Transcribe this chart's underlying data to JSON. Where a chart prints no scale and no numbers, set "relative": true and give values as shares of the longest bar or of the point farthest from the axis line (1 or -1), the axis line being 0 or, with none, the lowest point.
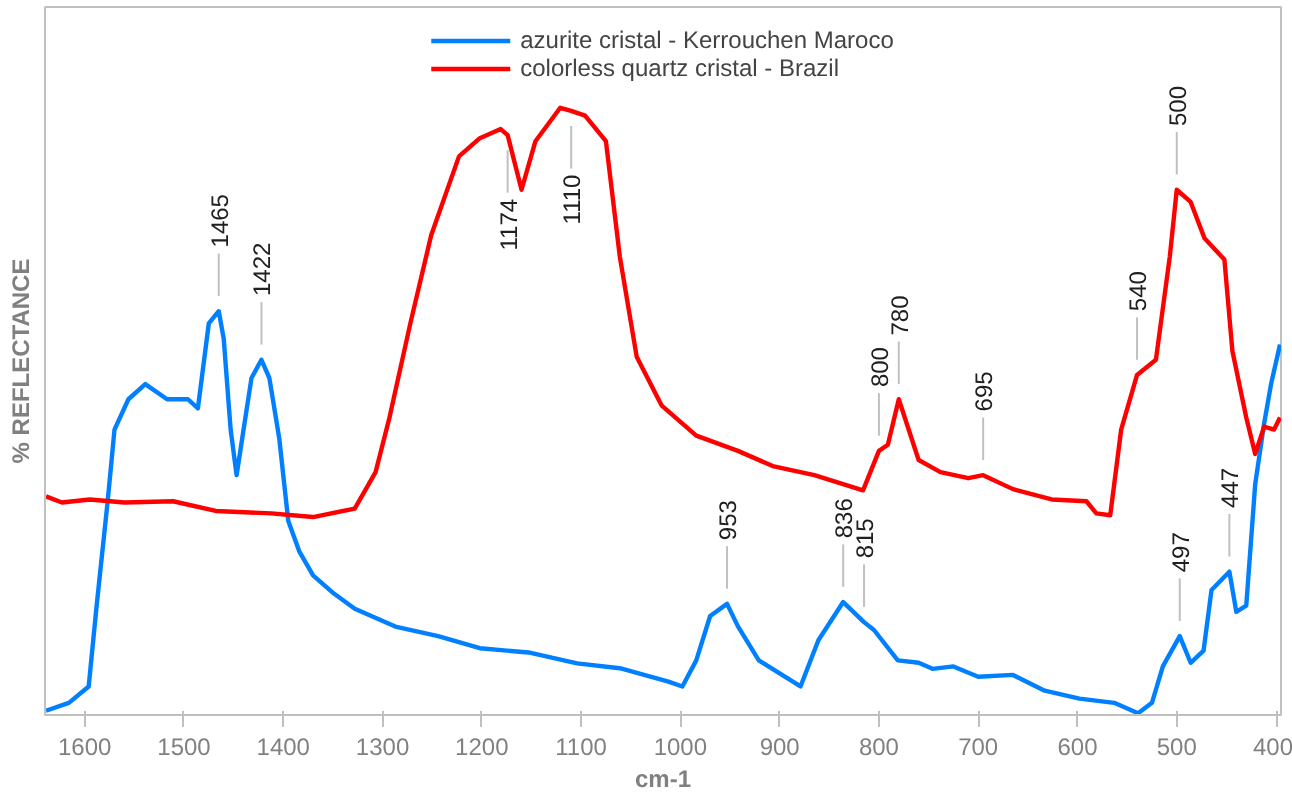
{
  "chart_data": {
    "type": "line",
    "xlabel": "cm-1",
    "ylabel": "% REFLECTANCE",
    "relative": true,
    "legend": "top",
    "grid": false,
    "xlim": [
      1640,
      395
    ],
    "xticks": [
      1600,
      1500,
      1400,
      1300,
      1200,
      1100,
      1000,
      900,
      800,
      700,
      600,
      500,
      400
    ],
    "series": [
      {
        "name": "azurite cristal - Kerrouchen Maroco",
        "color": "#0080ff",
        "x": [
          1639,
          1616,
          1596,
          1588,
          1577,
          1570,
          1556,
          1539,
          1517,
          1496,
          1486,
          1475,
          1465,
          1460,
          1453,
          1447,
          1440,
          1432,
          1422,
          1414,
          1404,
          1395,
          1384,
          1370,
          1349,
          1328,
          1286,
          1244,
          1202,
          1153,
          1104,
          1061,
          1012,
          998,
          984,
          970,
          953,
          942,
          921,
          879,
          861,
          836,
          815,
          805,
          781,
          760,
          746,
          725,
          700,
          665,
          633,
          598,
          563,
          539,
          525,
          514,
          497,
          486,
          473,
          465,
          447,
          440,
          430,
          421,
          412,
          405,
          396
        ],
        "values": [
          0.007,
          0.02,
          0.047,
          0.18,
          0.35,
          0.47,
          0.52,
          0.545,
          0.52,
          0.52,
          0.505,
          0.645,
          0.665,
          0.62,
          0.47,
          0.395,
          0.47,
          0.555,
          0.585,
          0.555,
          0.455,
          0.32,
          0.27,
          0.23,
          0.2,
          0.175,
          0.145,
          0.13,
          0.11,
          0.103,
          0.085,
          0.077,
          0.055,
          0.047,
          0.09,
          0.163,
          0.183,
          0.146,
          0.09,
          0.047,
          0.123,
          0.186,
          0.153,
          0.14,
          0.09,
          0.086,
          0.076,
          0.08,
          0.063,
          0.066,
          0.04,
          0.027,
          0.02,
          0.003,
          0.02,
          0.08,
          0.13,
          0.086,
          0.106,
          0.206,
          0.236,
          0.17,
          0.18,
          0.38,
          0.48,
          0.545,
          0.61
        ]
      },
      {
        "name": "colorless quartz cristal - Brazil",
        "color": "#ff0000",
        "x": [
          1639,
          1623,
          1595,
          1560,
          1511,
          1468,
          1412,
          1370,
          1328,
          1307,
          1293,
          1272,
          1251,
          1223,
          1202,
          1181,
          1174,
          1160,
          1146,
          1121,
          1110,
          1096,
          1075,
          1061,
          1044,
          1019,
          984,
          942,
          907,
          865,
          816,
          800,
          791,
          780,
          760,
          738,
          710,
          695,
          665,
          626,
          591,
          581,
          567,
          556,
          540,
          521,
          507,
          500,
          486,
          472,
          452,
          444,
          430,
          421,
          412,
          402,
          396
        ],
        "values": [
          0.36,
          0.35,
          0.355,
          0.35,
          0.352,
          0.336,
          0.332,
          0.326,
          0.34,
          0.4,
          0.49,
          0.645,
          0.79,
          0.92,
          0.95,
          0.965,
          0.955,
          0.865,
          0.945,
          1.0,
          0.995,
          0.987,
          0.945,
          0.755,
          0.59,
          0.51,
          0.46,
          0.435,
          0.41,
          0.395,
          0.37,
          0.435,
          0.445,
          0.52,
          0.42,
          0.4,
          0.39,
          0.395,
          0.372,
          0.355,
          0.352,
          0.332,
          0.329,
          0.47,
          0.56,
          0.585,
          0.755,
          0.865,
          0.845,
          0.785,
          0.75,
          0.6,
          0.49,
          0.43,
          0.475,
          0.47,
          0.49
        ]
      }
    ],
    "annotations": [
      {
        "text": "1465",
        "x": 1465,
        "y": 0.665
      },
      {
        "text": "1422",
        "x": 1422,
        "y": 0.585
      },
      {
        "text": "1174",
        "x": 1174,
        "y": 0.955
      },
      {
        "text": "1110",
        "x": 1110,
        "y": 0.995
      },
      {
        "text": "953",
        "x": 953,
        "y": 0.183
      },
      {
        "text": "836",
        "x": 836,
        "y": 0.186
      },
      {
        "text": "815",
        "x": 815,
        "y": 0.153
      },
      {
        "text": "800",
        "x": 800,
        "y": 0.435
      },
      {
        "text": "780",
        "x": 780,
        "y": 0.52
      },
      {
        "text": "695",
        "x": 695,
        "y": 0.395
      },
      {
        "text": "540",
        "x": 540,
        "y": 0.56
      },
      {
        "text": "500",
        "x": 500,
        "y": 0.865
      },
      {
        "text": "497",
        "x": 497,
        "y": 0.13
      },
      {
        "text": "447",
        "x": 447,
        "y": 0.236
      }
    ]
  }
}
